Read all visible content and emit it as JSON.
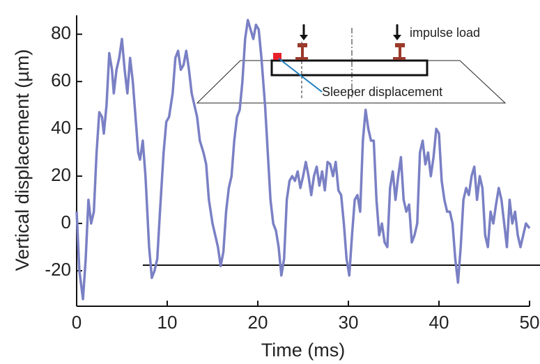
{
  "chart_data": {
    "type": "line",
    "x_label": "Time (ms)",
    "y_label": "Vertical displacement (µm)",
    "annotations": [
      "impulse load",
      "Sleeper displacement"
    ],
    "xlim": [
      0,
      50
    ],
    "ylim": [
      -35,
      88
    ],
    "xticks": [
      0,
      10,
      20,
      30,
      40,
      50
    ],
    "yticks": [
      -20,
      0,
      20,
      40,
      60,
      80
    ],
    "series": [
      {
        "color": "#7a80c4",
        "x": [
          0,
          0.3,
          0.7,
          1.0,
          1.3,
          1.6,
          1.9,
          2.2,
          2.5,
          2.8,
          3.0,
          3.3,
          3.6,
          3.9,
          4.1,
          4.4,
          4.7,
          5.0,
          5.3,
          5.6,
          5.9,
          6.2,
          6.5,
          6.8,
          7.0,
          7.3,
          7.6,
          8.0,
          8.3,
          8.6,
          8.9,
          9.2,
          9.6,
          9.9,
          10.2,
          10.6,
          10.9,
          11.2,
          11.5,
          11.8,
          12.1,
          12.4,
          12.7,
          13.0,
          13.3,
          13.6,
          14.0,
          14.3,
          14.6,
          15.0,
          15.3,
          15.6,
          15.9,
          16.2,
          16.5,
          16.8,
          17.1,
          17.4,
          17.7,
          18.0,
          18.3,
          18.6,
          18.9,
          19.2,
          19.5,
          19.8,
          20.1,
          20.4,
          20.8,
          21.1,
          21.4,
          21.7,
          22.0,
          22.3,
          22.6,
          22.9,
          23.2,
          23.5,
          23.8,
          24.1,
          24.4,
          24.7,
          25.0,
          25.3,
          25.6,
          25.9,
          26.2,
          26.5,
          26.8,
          27.1,
          27.4,
          27.7,
          28.0,
          28.3,
          28.6,
          28.9,
          29.2,
          29.5,
          29.8,
          30.1,
          30.4,
          30.7,
          31.0,
          31.3,
          31.6,
          31.9,
          32.2,
          32.5,
          32.8,
          33.1,
          33.4,
          33.7,
          34.0,
          34.3,
          34.6,
          34.9,
          35.2,
          35.5,
          35.8,
          36.1,
          36.4,
          36.7,
          37.0,
          37.3,
          37.6,
          37.9,
          38.2,
          38.5,
          38.8,
          39.1,
          39.4,
          39.7,
          40.0,
          40.3,
          40.6,
          40.9,
          41.2,
          41.5,
          41.8,
          42.1,
          42.4,
          42.7,
          43.0,
          43.3,
          43.6,
          43.9,
          44.2,
          44.5,
          44.8,
          45.1,
          45.4,
          45.7,
          46.0,
          46.3,
          46.6,
          46.9,
          47.2,
          47.5,
          47.8,
          48.1,
          48.4,
          48.7,
          49.0,
          49.3,
          49.6,
          50
        ],
        "values": [
          5,
          -20,
          -32,
          -15,
          10,
          0,
          5,
          30,
          47,
          45,
          38,
          50,
          72,
          65,
          55,
          65,
          70,
          78,
          65,
          55,
          70,
          60,
          45,
          30,
          27,
          35,
          20,
          -10,
          -23,
          -20,
          -15,
          5,
          30,
          43,
          45,
          55,
          70,
          73,
          65,
          67,
          73,
          65,
          55,
          50,
          45,
          35,
          30,
          25,
          10,
          0,
          -5,
          -10,
          -18,
          -12,
          5,
          15,
          20,
          35,
          45,
          48,
          60,
          78,
          86,
          82,
          78,
          84,
          82,
          70,
          50,
          30,
          10,
          0,
          -3,
          -10,
          -22,
          -15,
          10,
          18,
          20,
          18,
          22,
          15,
          20,
          26,
          20,
          12,
          20,
          24,
          16,
          22,
          14,
          26,
          25,
          20,
          26,
          14,
          12,
          0,
          -15,
          -22,
          -5,
          10,
          12,
          5,
          35,
          48,
          40,
          35,
          35,
          10,
          -5,
          0,
          -8,
          -10,
          15,
          22,
          10,
          20,
          28,
          10,
          5,
          8,
          -8,
          -5,
          0,
          30,
          35,
          25,
          30,
          20,
          28,
          40,
          38,
          18,
          10,
          5,
          5,
          0,
          -15,
          -25,
          -10,
          10,
          15,
          12,
          20,
          24,
          10,
          20,
          15,
          -5,
          -10,
          5,
          0,
          8,
          15,
          10,
          0,
          -10,
          10,
          0,
          5,
          -5,
          -10,
          -5,
          0,
          -2
        ]
      }
    ]
  }
}
